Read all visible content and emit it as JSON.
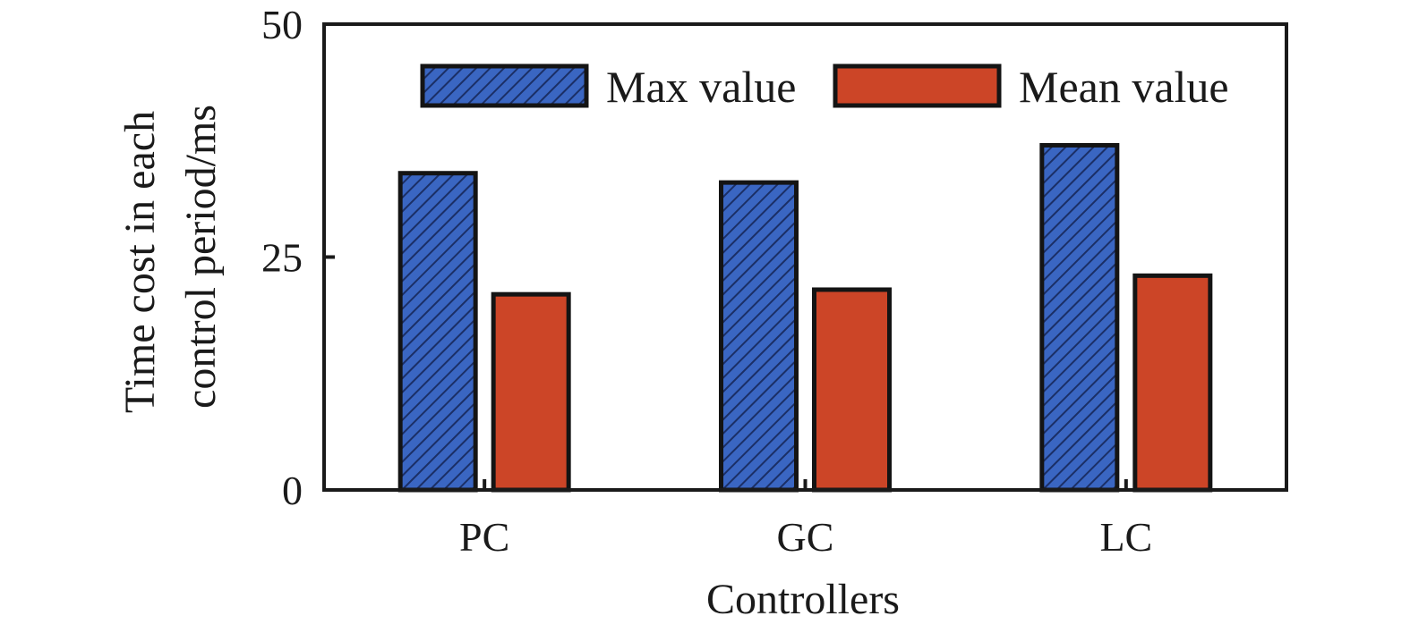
{
  "chart_data": {
    "type": "bar",
    "title": "",
    "xlabel": "Controllers",
    "ylabel_lines": [
      "Time cost in each",
      "control period/ms"
    ],
    "categories": [
      "PC",
      "GC",
      "LC"
    ],
    "series": [
      {
        "name": "Max value",
        "values": [
          34,
          33,
          37
        ],
        "color": "#2f5fb8",
        "pattern": "hatch"
      },
      {
        "name": "Mean value",
        "values": [
          21,
          21.5,
          23
        ],
        "color": "#cc4527",
        "pattern": "solid"
      }
    ],
    "ylim": [
      0,
      50
    ],
    "yticks": [
      0,
      25,
      50
    ],
    "yticks_labels": [
      "0",
      "25",
      "50"
    ],
    "grid": false,
    "legend": "top-right"
  }
}
